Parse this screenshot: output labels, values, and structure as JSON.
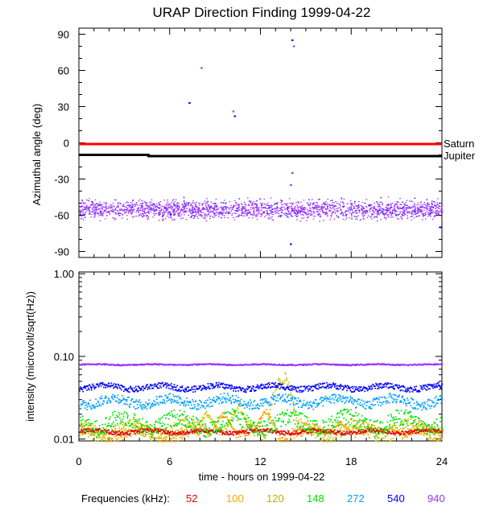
{
  "chart_data": [
    {
      "type": "scatter",
      "title": "URAP Direction Finding  1999-04-22",
      "ylabel": "Azimuthal angle (deg)",
      "ylim": [
        -95,
        95
      ],
      "xlim": [
        0,
        24
      ],
      "y_ticks": [
        "90",
        "60",
        "30",
        "0",
        "-30",
        "-60",
        "-90"
      ],
      "y_tick_values": [
        90,
        60,
        30,
        0,
        -30,
        -60,
        -90
      ],
      "reference_lines": [
        {
          "name": "Saturn",
          "color": "#ff0000",
          "y": -1
        },
        {
          "name": "Jupiter",
          "color": "#000000",
          "y_start": -10,
          "y_end": -11,
          "step_at_hour": 4.6
        }
      ],
      "band": {
        "name": "azimuth cluster",
        "color": "#9b30ff",
        "center": -55,
        "spread": 7,
        "x": [
          0,
          24
        ]
      },
      "outliers": [
        {
          "x": 7.3,
          "y": 33,
          "color": "#0000ff"
        },
        {
          "x": 8.1,
          "y": 62,
          "color": "#9b30ff"
        },
        {
          "x": 10.2,
          "y": 26,
          "color": "#9b30ff"
        },
        {
          "x": 10.3,
          "y": 22,
          "color": "#0000ff"
        },
        {
          "x": 14.1,
          "y": 85,
          "color": "#0000ff"
        },
        {
          "x": 14.2,
          "y": 80,
          "color": "#9b30ff"
        },
        {
          "x": 14.1,
          "y": -25,
          "color": "#9b30ff"
        },
        {
          "x": 14.0,
          "y": -35,
          "color": "#9b30ff"
        },
        {
          "x": 14.0,
          "y": -84,
          "color": "#0000ff"
        },
        {
          "x": 23.9,
          "y": -70,
          "color": "#0000ff"
        }
      ]
    },
    {
      "type": "scatter",
      "ylabel": "intensity (microvolt/sqrt(Hz))",
      "yscale": "log",
      "ylim": [
        0.0095,
        1.05
      ],
      "xlim": [
        0,
        24
      ],
      "xlabel": "time - hours on 1999-04-22",
      "x_ticks": [
        "0",
        "6",
        "12",
        "18",
        "24"
      ],
      "x_tick_values": [
        0,
        6,
        12,
        18,
        24
      ],
      "y_ticks": [
        "1.00",
        "0.10",
        "0.01"
      ],
      "y_tick_values": [
        1.0,
        0.1,
        0.01
      ],
      "legend_title": "Frequencies (kHz):",
      "series": [
        {
          "name": "52",
          "color": "#e00000",
          "base": 0.0125,
          "spread": 0.05
        },
        {
          "name": "100",
          "color": "#ffa500",
          "base": 0.012,
          "spread": 0.15,
          "bursts": [
            [
              9.5,
              0.022
            ],
            [
              12.3,
              0.024
            ],
            [
              17.2,
              0.017
            ],
            [
              20.5,
              0.014
            ]
          ]
        },
        {
          "name": "120",
          "color": "#c8c800",
          "base": 0.013,
          "spread": 0.18,
          "bursts": [
            [
              8.4,
              0.022
            ],
            [
              10.5,
              0.028
            ],
            [
              13.2,
              0.06
            ],
            [
              13.6,
              0.065
            ]
          ]
        },
        {
          "name": "148",
          "color": "#00e000",
          "base": 0.016,
          "spread": 0.2
        },
        {
          "name": "272",
          "color": "#00a0ff",
          "base": 0.029,
          "spread": 0.12
        },
        {
          "name": "540",
          "color": "#0000ff",
          "base": 0.043,
          "spread": 0.07
        },
        {
          "name": "940",
          "color": "#9b30ff",
          "base": 0.081,
          "spread": 0.015
        }
      ]
    }
  ]
}
